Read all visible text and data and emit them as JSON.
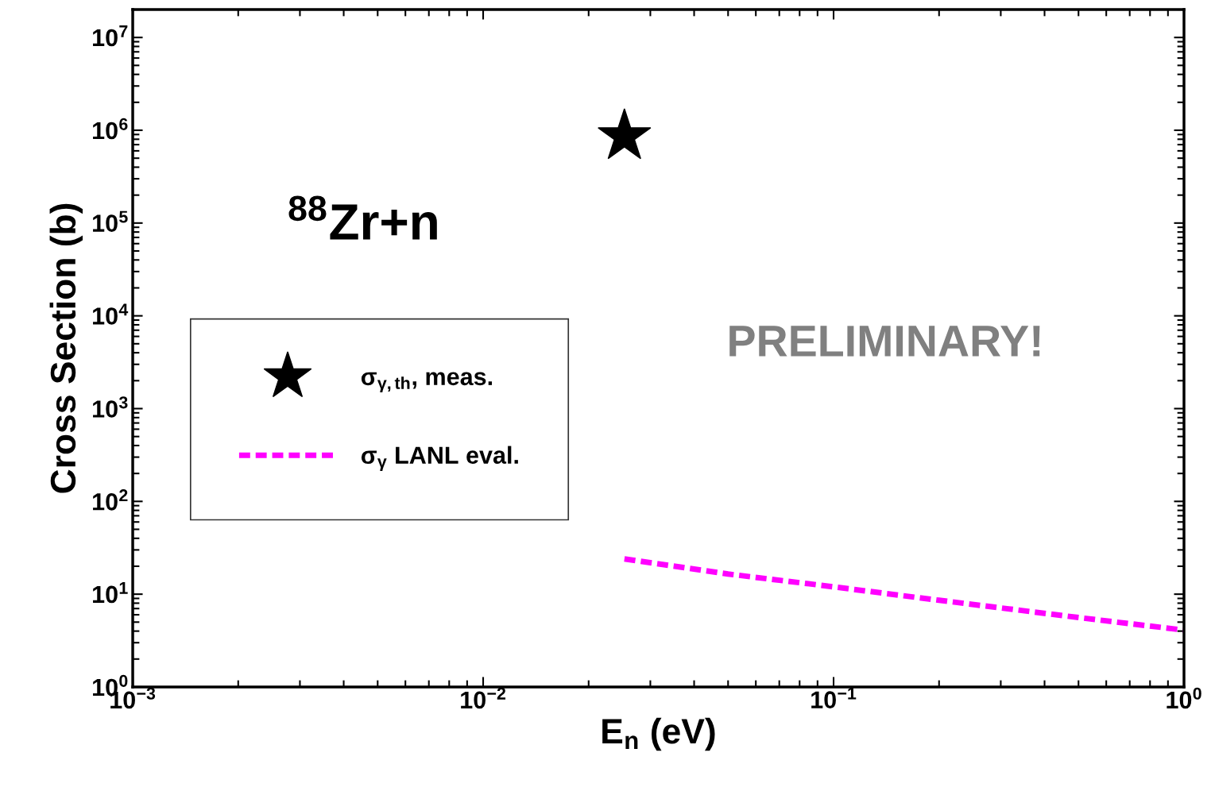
{
  "chart_data": {
    "type": "line",
    "xlabel": "E$_{n}$ (eV)",
    "ylabel": "Cross Section (b)",
    "log": "xy",
    "grid": false,
    "legend": "center left",
    "xlim": [
      0.001,
      1
    ],
    "ylim": [
      1,
      20000000
    ],
    "xticks": [
      {
        "value": 0.001,
        "label": "10$^{−3}$"
      },
      {
        "value": 0.01,
        "label": "10$^{−2}$"
      },
      {
        "value": 0.1,
        "label": "10$^{−1}$"
      },
      {
        "value": 1,
        "label": "10$^{0}$"
      }
    ],
    "yticks": [
      {
        "value": 1,
        "label": "10$^{0}$"
      },
      {
        "value": 10,
        "label": "10$^{1}$"
      },
      {
        "value": 100,
        "label": "10$^{2}$"
      },
      {
        "value": 1000,
        "label": "10$^{3}$"
      },
      {
        "value": 10000,
        "label": "10$^{4}$"
      },
      {
        "value": 100000,
        "label": "10$^{5}$"
      },
      {
        "value": 1000000,
        "label": "10$^{6}$"
      },
      {
        "value": 10000000,
        "label": "10$^{7}$"
      }
    ],
    "series": [
      {
        "name": "σ$_{γ,th}$, meas.",
        "type": "scatter",
        "marker": "star",
        "color": "#000000",
        "x": [
          0.0253
        ],
        "values": [
          860000
        ]
      },
      {
        "name": "σ$_{γ}$ LANL eval.",
        "marker": "none",
        "line_style": "dashed",
        "color": "#ff00ff",
        "x": [
          0.0253,
          0.05,
          0.1,
          0.2,
          0.5,
          1
        ],
        "values": [
          24,
          16.5,
          12,
          8.6,
          5.6,
          4.1
        ]
      }
    ],
    "annotations": [
      "$^{88}$Zr+n",
      "PRELIMINARY!"
    ]
  }
}
